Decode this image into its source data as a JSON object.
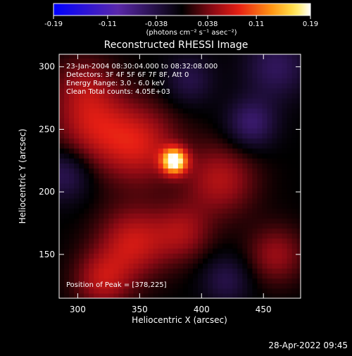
{
  "chart_data": {
    "type": "heatmap",
    "title": "Reconstructed RHESSI Image",
    "xlabel": "Heliocentric X (arcsec)",
    "ylabel": "Heliocentric Y (arcsec)",
    "xlim": [
      285,
      480
    ],
    "ylim": [
      115,
      310
    ],
    "x_ticks": [
      300,
      350,
      400,
      450
    ],
    "y_ticks": [
      150,
      200,
      250,
      300
    ],
    "colorbar": {
      "range": [
        -0.19,
        0.19
      ],
      "ticks": [
        "-0.19",
        "-0.11",
        "-0.038",
        "0.038",
        "0.11",
        "0.19"
      ],
      "unit_label": "(photons cm⁻² s⁻¹ asec⁻²)"
    },
    "annotations": [
      "23-Jan-2004 08:30:04.000 to 08:32:08.000",
      "Detectors: 3F 4F 5F 6F 7F 8F, Att 0",
      "Energy Range: 3.0 - 6.0 keV",
      "Clean      Total counts: 4.05E+03"
    ],
    "peak_label": "Position of Peak = [378,225]",
    "peak": {
      "x": 378,
      "y": 225,
      "value": 0.19
    },
    "emission_regions": [
      {
        "x": 378,
        "y": 225,
        "sigma": 7,
        "value": 0.19
      },
      {
        "x": 350,
        "y": 238,
        "sigma": 22,
        "value": 0.07
      },
      {
        "x": 312,
        "y": 252,
        "sigma": 22,
        "value": 0.06
      },
      {
        "x": 305,
        "y": 285,
        "sigma": 18,
        "value": 0.04
      },
      {
        "x": 415,
        "y": 210,
        "sigma": 20,
        "value": 0.06
      },
      {
        "x": 345,
        "y": 160,
        "sigma": 20,
        "value": 0.07
      },
      {
        "x": 320,
        "y": 130,
        "sigma": 16,
        "value": 0.06
      },
      {
        "x": 385,
        "y": 168,
        "sigma": 16,
        "value": 0.05
      },
      {
        "x": 460,
        "y": 150,
        "sigma": 16,
        "value": 0.05
      },
      {
        "x": 440,
        "y": 255,
        "sigma": 14,
        "value": -0.06
      },
      {
        "x": 460,
        "y": 300,
        "sigma": 18,
        "value": -0.05
      },
      {
        "x": 290,
        "y": 215,
        "sigma": 15,
        "value": -0.05
      },
      {
        "x": 390,
        "y": 290,
        "sigma": 14,
        "value": -0.04
      },
      {
        "x": 420,
        "y": 130,
        "sigma": 14,
        "value": -0.04
      }
    ]
  },
  "footer": {
    "timestamp": "28-Apr-2022 09:45"
  }
}
